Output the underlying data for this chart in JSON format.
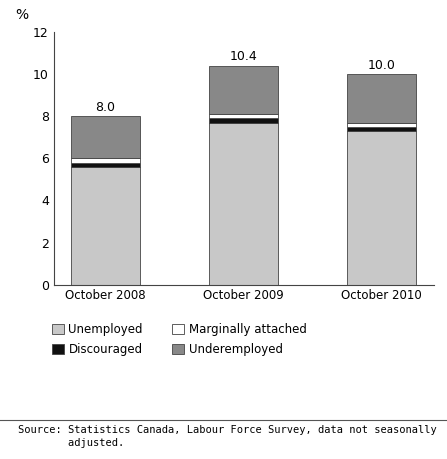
{
  "categories": [
    "October 2008",
    "October 2009",
    "October 2010"
  ],
  "unemployed": [
    5.6,
    7.7,
    7.3
  ],
  "discouraged": [
    0.2,
    0.2,
    0.2
  ],
  "marginally_attached": [
    0.2,
    0.2,
    0.2
  ],
  "underemployed": [
    2.0,
    2.3,
    2.3
  ],
  "totals": [
    "8.0",
    "10.4",
    "10.0"
  ],
  "color_unemployed": "#c8c8c8",
  "color_discouraged": "#111111",
  "color_marginally_attached": "#ffffff",
  "color_underemployed": "#888888",
  "bar_edge_color": "#444444",
  "ylim": [
    0,
    12
  ],
  "yticks": [
    0,
    2,
    4,
    6,
    8,
    10,
    12
  ],
  "ylabel": "%",
  "source_text1": "Source: Statistics Canada, Labour Force Survey, data not seasonally",
  "source_text2": "        adjusted.",
  "bar_width": 0.5
}
